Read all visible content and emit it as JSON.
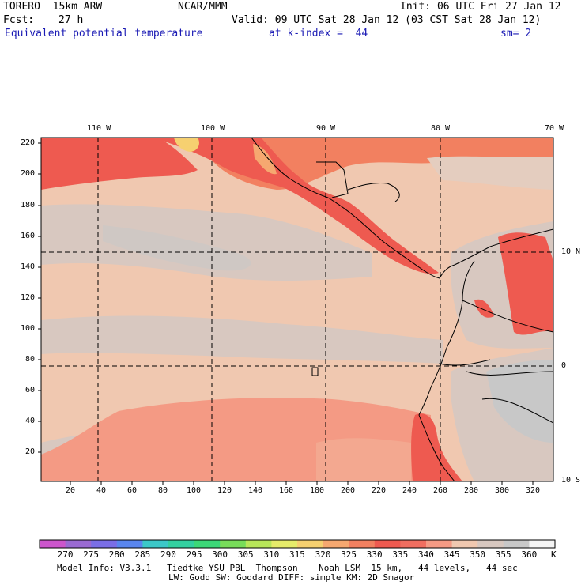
{
  "header": {
    "model": "TORERO  15km ARW",
    "center": "NCAR/MMM",
    "init": "Init: 06 UTC Fri 27 Jan 12",
    "fcst_label": "Fcst:",
    "fcst_value": "27 h",
    "valid": "Valid: 09 UTC Sat 28 Jan 12 (03 CST Sat 28 Jan 12)",
    "field": "Equivalent potential temperature",
    "level": "at k-index =  44",
    "smooth": "sm= 2"
  },
  "map": {
    "top_lon_labels": [
      "110 W",
      "100 W",
      "90 W",
      "80 W",
      "70 W"
    ],
    "right_lat_labels": [
      "10 N",
      "0",
      "10 S"
    ],
    "left_y_ticks": [
      "220",
      "200",
      "180",
      "160",
      "140",
      "120",
      "100",
      "80",
      "60",
      "40",
      "20"
    ],
    "bottom_x_ticks": [
      "20",
      "40",
      "60",
      "80",
      "100",
      "120",
      "140",
      "160",
      "180",
      "200",
      "220",
      "240",
      "260",
      "280",
      "300",
      "320"
    ],
    "grid_lines": "dashed"
  },
  "colorbar": {
    "unit": "K",
    "labels": [
      "270",
      "275",
      "280",
      "285",
      "290",
      "295",
      "300",
      "305",
      "310",
      "315",
      "320",
      "325",
      "330",
      "335",
      "340",
      "345",
      "350",
      "355",
      "360"
    ],
    "colors": [
      "#cc55cc",
      "#9a6ad2",
      "#7a6ee6",
      "#5a86ee",
      "#3cc8c8",
      "#33d0a0",
      "#3cd878",
      "#78dc5a",
      "#b8e65a",
      "#e6ec6a",
      "#f6d070",
      "#f6a870",
      "#f28060",
      "#ee5a50",
      "#f06e60",
      "#f49a84",
      "#f0c8b0",
      "#d8c8c0",
      "#c8c8c8",
      "#f4f4f4"
    ]
  },
  "footer": {
    "line1": "Model Info: V3.3.1   Tiedtke YSU PBL  Thompson    Noah LSM  15 km,   44 levels,   44 sec",
    "line2": "LW: Godd SW: Goddard DIFF: simple KM: 2D Smagor"
  }
}
